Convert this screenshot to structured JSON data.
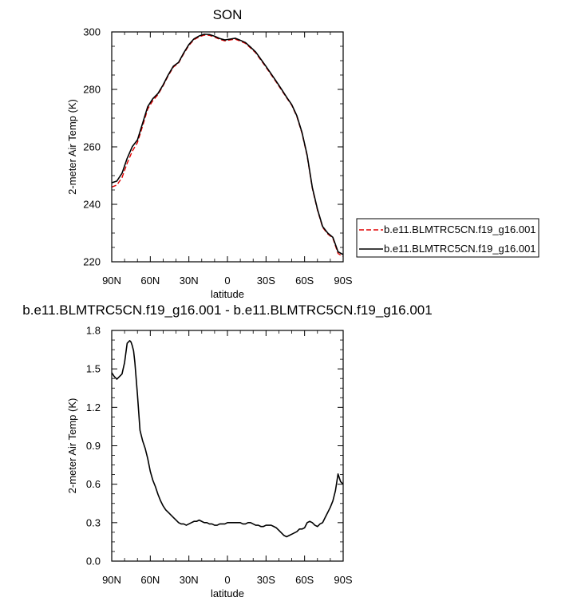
{
  "chart_data": [
    {
      "type": "line",
      "title": "SON",
      "xlabel": "latitude",
      "ylabel": "2-meter Air Temp (K)",
      "xlim": [
        90,
        -90
      ],
      "ylim": [
        220,
        300
      ],
      "x_ticks": [
        90,
        60,
        30,
        0,
        -30,
        -60,
        -90
      ],
      "x_tick_labels": [
        "90N",
        "60N",
        "30N",
        "0",
        "30S",
        "60S",
        "90S"
      ],
      "y_ticks": [
        220,
        240,
        260,
        280,
        300
      ],
      "y_tick_labels": [
        "220",
        "240",
        "260",
        "280",
        "300"
      ],
      "legend_position": "right",
      "grid": false,
      "series": [
        {
          "name": "b.e11.BLMTRC5CN.f19_g16.001",
          "color": "#e00000",
          "style": "dashed",
          "x": [
            90,
            86,
            82,
            78,
            74,
            70,
            66,
            62,
            58,
            54,
            50,
            46,
            42,
            38,
            34,
            30,
            26,
            22,
            18,
            14,
            10,
            6,
            2,
            -2,
            -6,
            -10,
            -14,
            -18,
            -22,
            -26,
            -30,
            -34,
            -38,
            -42,
            -46,
            -50,
            -54,
            -58,
            -62,
            -66,
            -70,
            -74,
            -78,
            -82,
            -86,
            -90
          ],
          "y": [
            246.0,
            246.7,
            249.3,
            254.3,
            258.5,
            261.5,
            267.2,
            273.2,
            276.1,
            278.2,
            281.3,
            284.8,
            287.8,
            289.2,
            292.4,
            295.3,
            297.3,
            298.3,
            298.9,
            298.8,
            298.2,
            297.4,
            296.9,
            297.2,
            297.5,
            296.8,
            296.0,
            294.4,
            292.7,
            290.2,
            287.7,
            285.1,
            282.5,
            279.8,
            277.1,
            274.5,
            270.5,
            264.7,
            256.8,
            245.6,
            238.0,
            232.0,
            229.7,
            228.2,
            222.9,
            221.8
          ]
        },
        {
          "name": "b.e11.BLMTRC5CN.f19_g16.001",
          "color": "#000000",
          "style": "solid",
          "x": [
            90,
            86,
            82,
            78,
            74,
            70,
            66,
            62,
            58,
            54,
            50,
            46,
            42,
            38,
            34,
            30,
            26,
            22,
            18,
            14,
            10,
            6,
            2,
            -2,
            -6,
            -10,
            -14,
            -18,
            -22,
            -26,
            -30,
            -34,
            -38,
            -42,
            -46,
            -50,
            -54,
            -58,
            -62,
            -66,
            -70,
            -74,
            -78,
            -82,
            -86,
            -90
          ],
          "y": [
            247.5,
            248.1,
            250.8,
            256.0,
            260.1,
            262.4,
            268.2,
            274.0,
            276.8,
            278.6,
            281.6,
            285.1,
            288.1,
            289.4,
            292.7,
            295.6,
            297.6,
            298.6,
            299.2,
            299.1,
            298.5,
            297.7,
            297.2,
            297.5,
            297.8,
            297.1,
            296.3,
            294.7,
            293.0,
            290.5,
            288.0,
            285.4,
            282.8,
            280.1,
            277.3,
            274.7,
            270.8,
            265.0,
            257.1,
            245.9,
            238.3,
            232.3,
            230.0,
            228.5,
            223.5,
            222.5
          ]
        }
      ]
    },
    {
      "type": "line",
      "title": "b.e11.BLMTRC5CN.f19_g16.001 - b.e11.BLMTRC5CN.f19_g16.001",
      "xlabel": "latitude",
      "ylabel": "2-meter Air Temp (K)",
      "xlim": [
        90,
        -90
      ],
      "ylim": [
        0.0,
        1.8
      ],
      "x_ticks": [
        90,
        60,
        30,
        0,
        -30,
        -60,
        -90
      ],
      "x_tick_labels": [
        "90N",
        "60N",
        "30N",
        "0",
        "30S",
        "60S",
        "90S"
      ],
      "y_ticks": [
        0.0,
        0.3,
        0.6,
        0.9,
        1.2,
        1.5,
        1.8
      ],
      "y_tick_labels": [
        "0.0",
        "0.3",
        "0.6",
        "0.9",
        "1.2",
        "1.5",
        "1.8"
      ],
      "grid": false,
      "series": [
        {
          "color": "#000000",
          "style": "solid",
          "x": [
            90,
            88,
            86,
            84,
            82,
            80,
            78,
            76,
            75,
            74,
            73,
            72,
            70,
            68,
            66,
            64,
            62,
            60,
            58,
            56,
            54,
            52,
            50,
            48,
            46,
            44,
            42,
            40,
            38,
            36,
            34,
            32,
            30,
            28,
            26,
            24,
            22,
            20,
            18,
            16,
            14,
            12,
            10,
            8,
            6,
            4,
            2,
            0,
            -2,
            -4,
            -6,
            -8,
            -10,
            -12,
            -14,
            -16,
            -18,
            -20,
            -22,
            -24,
            -26,
            -28,
            -30,
            -32,
            -34,
            -36,
            -38,
            -40,
            -42,
            -44,
            -46,
            -48,
            -50,
            -52,
            -54,
            -56,
            -58,
            -60,
            -62,
            -64,
            -66,
            -68,
            -70,
            -72,
            -74,
            -76,
            -78,
            -80,
            -82,
            -84,
            -86,
            -88,
            -90
          ],
          "y": [
            1.47,
            1.44,
            1.42,
            1.44,
            1.46,
            1.55,
            1.7,
            1.72,
            1.71,
            1.68,
            1.64,
            1.55,
            1.3,
            1.02,
            0.94,
            0.88,
            0.8,
            0.7,
            0.63,
            0.58,
            0.52,
            0.47,
            0.43,
            0.4,
            0.38,
            0.36,
            0.34,
            0.32,
            0.3,
            0.29,
            0.29,
            0.28,
            0.29,
            0.3,
            0.31,
            0.31,
            0.32,
            0.31,
            0.3,
            0.3,
            0.29,
            0.29,
            0.28,
            0.28,
            0.29,
            0.29,
            0.29,
            0.3,
            0.3,
            0.3,
            0.3,
            0.3,
            0.3,
            0.29,
            0.29,
            0.3,
            0.3,
            0.29,
            0.28,
            0.28,
            0.27,
            0.27,
            0.28,
            0.28,
            0.28,
            0.27,
            0.26,
            0.24,
            0.22,
            0.2,
            0.19,
            0.2,
            0.21,
            0.22,
            0.23,
            0.25,
            0.25,
            0.26,
            0.3,
            0.31,
            0.3,
            0.28,
            0.27,
            0.29,
            0.3,
            0.34,
            0.38,
            0.42,
            0.47,
            0.55,
            0.68,
            0.62,
            0.6
          ]
        }
      ]
    }
  ]
}
